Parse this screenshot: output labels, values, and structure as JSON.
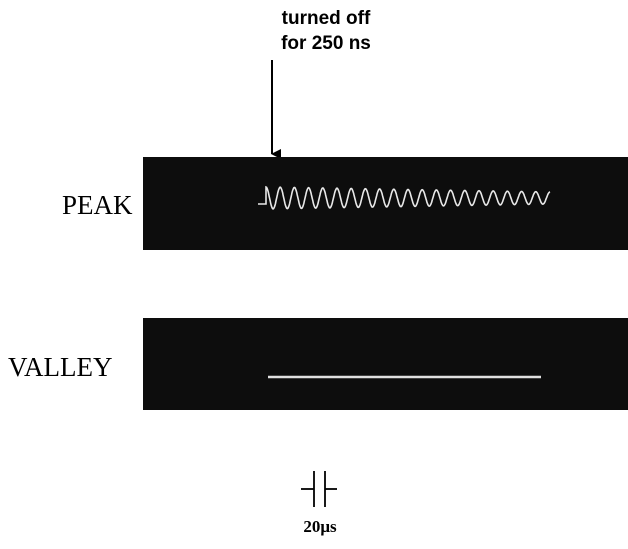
{
  "annotation": {
    "lines": [
      "turned off",
      "for 250 ns"
    ]
  },
  "traces": [
    {
      "label": "PEAK"
    },
    {
      "label": "VALLEY"
    }
  ],
  "scale_bar": {
    "label": "20μs"
  }
}
